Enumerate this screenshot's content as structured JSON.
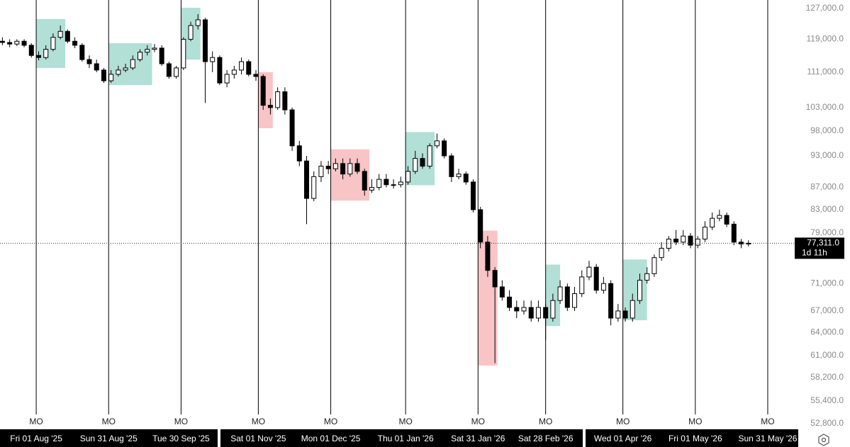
{
  "chart_data": {
    "type": "candlestick",
    "log_scale": true,
    "up_color": "#ffffff",
    "down_color": "#000000",
    "x": [
      "2025-07-18",
      "2025-07-21",
      "2025-07-24",
      "2025-07-27",
      "2025-07-30",
      "2025-08-02",
      "2025-08-05",
      "2025-08-08",
      "2025-08-11",
      "2025-08-14",
      "2025-08-17",
      "2025-08-20",
      "2025-08-23",
      "2025-08-26",
      "2025-08-29",
      "2025-09-01",
      "2025-09-04",
      "2025-09-07",
      "2025-09-10",
      "2025-09-13",
      "2025-09-16",
      "2025-09-19",
      "2025-09-22",
      "2025-09-25",
      "2025-09-28",
      "2025-10-01",
      "2025-10-04",
      "2025-10-07",
      "2025-10-10",
      "2025-10-13",
      "2025-10-16",
      "2025-10-19",
      "2025-10-22",
      "2025-10-25",
      "2025-10-28",
      "2025-10-31",
      "2025-11-03",
      "2025-11-06",
      "2025-11-09",
      "2025-11-12",
      "2025-11-15",
      "2025-11-18",
      "2025-11-21",
      "2025-11-24",
      "2025-11-27",
      "2025-11-30",
      "2025-12-03",
      "2025-12-06",
      "2025-12-09",
      "2025-12-12",
      "2025-12-15",
      "2025-12-18",
      "2025-12-21",
      "2025-12-24",
      "2025-12-27",
      "2025-12-30",
      "2026-01-02",
      "2026-01-05",
      "2026-01-08",
      "2026-01-11",
      "2026-01-14",
      "2026-01-17",
      "2026-01-20",
      "2026-01-23",
      "2026-01-26",
      "2026-01-29",
      "2026-02-01",
      "2026-02-04",
      "2026-02-07",
      "2026-02-10",
      "2026-02-13",
      "2026-02-16",
      "2026-02-19",
      "2026-02-22",
      "2026-02-25",
      "2026-02-28",
      "2026-03-03",
      "2026-03-06",
      "2026-03-09",
      "2026-03-12",
      "2026-03-15",
      "2026-03-18",
      "2026-03-21",
      "2026-03-24",
      "2026-03-27",
      "2026-03-30",
      "2026-04-02",
      "2026-04-05",
      "2026-04-08",
      "2026-04-11",
      "2026-04-14",
      "2026-04-17",
      "2026-04-20",
      "2026-04-23",
      "2026-04-26",
      "2026-04-29",
      "2026-05-02",
      "2026-05-05",
      "2026-05-08",
      "2026-05-11",
      "2026-05-14",
      "2026-05-17",
      "2026-05-20",
      "2026-05-23"
    ],
    "open": [
      118500,
      118200,
      117800,
      118500,
      117500,
      115000,
      114500,
      116500,
      119500,
      121000,
      118500,
      117500,
      114000,
      113000,
      111500,
      109000,
      110500,
      111500,
      112000,
      114000,
      115800,
      116500,
      116800,
      113000,
      110000,
      112000,
      119000,
      122500,
      124000,
      113500,
      114500,
      108500,
      110500,
      111500,
      113500,
      110500,
      110000,
      103500,
      103000,
      106500,
      102500,
      95000,
      92000,
      85000,
      89000,
      91000,
      90500,
      91500,
      89500,
      91500,
      90000,
      86500,
      87000,
      88500,
      87500,
      87500,
      88000,
      90000,
      92500,
      91000,
      95000,
      96000,
      93000,
      89000,
      89500,
      88000,
      83000,
      77500,
      73000,
      70500,
      69000,
      67500,
      67000,
      67500,
      66000,
      67500,
      66000,
      68500,
      70500,
      67500,
      69500,
      72000,
      73500,
      70000,
      71000,
      66000,
      67000,
      66000,
      68500,
      71500,
      72500,
      75000,
      76500,
      78000,
      77500,
      78500,
      77000,
      78000,
      80000,
      81500,
      82000,
      80500,
      77500,
      77200
    ],
    "high": [
      119500,
      119000,
      119000,
      119000,
      118000,
      116000,
      117500,
      120500,
      122500,
      121500,
      119500,
      118000,
      115000,
      114000,
      112000,
      111500,
      112500,
      113000,
      115000,
      116500,
      117500,
      117800,
      117500,
      113500,
      112500,
      119500,
      123500,
      125500,
      124500,
      116000,
      115000,
      111500,
      112500,
      114500,
      114000,
      111500,
      110500,
      105000,
      107500,
      107500,
      103000,
      96000,
      93000,
      90000,
      92000,
      92000,
      92500,
      92500,
      92500,
      92500,
      90500,
      88500,
      89500,
      89500,
      88500,
      89000,
      91000,
      94000,
      93500,
      95500,
      97500,
      96500,
      93500,
      90500,
      90000,
      88500,
      83500,
      78500,
      73500,
      71500,
      70000,
      68500,
      68500,
      68500,
      68500,
      68000,
      69500,
      71500,
      71000,
      70500,
      73000,
      74500,
      74000,
      72000,
      71500,
      68000,
      67500,
      69500,
      72500,
      73500,
      75500,
      77500,
      78500,
      79500,
      79500,
      79000,
      78500,
      81000,
      82500,
      83000,
      82500,
      81000,
      78000,
      77800
    ],
    "low": [
      117500,
      117000,
      117300,
      117000,
      114500,
      113800,
      114000,
      116000,
      119000,
      118000,
      116800,
      113500,
      112000,
      111000,
      108500,
      108500,
      110000,
      111000,
      111500,
      113500,
      115000,
      115800,
      112500,
      109500,
      109500,
      111500,
      118500,
      121500,
      104000,
      111000,
      108000,
      107500,
      109500,
      110500,
      110000,
      109000,
      102500,
      101500,
      102500,
      101500,
      94000,
      91000,
      80500,
      84500,
      88000,
      89500,
      90000,
      88500,
      89000,
      89500,
      85500,
      86000,
      86500,
      87000,
      86800,
      87000,
      87500,
      89500,
      90500,
      90500,
      94500,
      92500,
      88000,
      88500,
      87500,
      82500,
      76500,
      72000,
      60000,
      68500,
      67000,
      66000,
      66500,
      65500,
      65500,
      63000,
      65500,
      68000,
      67000,
      67000,
      69000,
      71500,
      69500,
      69500,
      65000,
      65500,
      65500,
      65500,
      68000,
      71000,
      72000,
      74500,
      76000,
      77000,
      77000,
      76500,
      76500,
      77500,
      79500,
      81000,
      80000,
      77000,
      76500,
      76800
    ],
    "close": [
      118200,
      117800,
      118500,
      117500,
      115000,
      114500,
      116500,
      119500,
      121000,
      118500,
      117500,
      114000,
      113000,
      111500,
      109000,
      110500,
      111500,
      112000,
      114000,
      115800,
      116500,
      116800,
      113000,
      110000,
      112000,
      119000,
      122500,
      124000,
      113500,
      114500,
      108500,
      110500,
      111500,
      113500,
      110500,
      110000,
      103500,
      103000,
      106500,
      102500,
      95000,
      92000,
      85000,
      89000,
      91000,
      90500,
      91500,
      89500,
      91500,
      90000,
      86500,
      87000,
      88500,
      87500,
      87500,
      88000,
      90000,
      92500,
      91000,
      95000,
      96000,
      93000,
      89000,
      89500,
      88000,
      83000,
      77500,
      73000,
      70500,
      69000,
      67500,
      67000,
      67500,
      66000,
      67500,
      66000,
      68500,
      70500,
      67500,
      69500,
      72000,
      73500,
      70000,
      71000,
      66000,
      67000,
      66000,
      68500,
      71500,
      72500,
      75000,
      76500,
      78000,
      77500,
      78500,
      77000,
      78000,
      80000,
      81500,
      82000,
      80500,
      77500,
      77200,
      77311
    ],
    "xlim": [
      "2025-07-17",
      "2026-06-05"
    ],
    "ylim": [
      52250,
      129300
    ],
    "yticks": [
      {
        "value": 127000,
        "label": "127,000.0"
      },
      {
        "value": 119000,
        "label": "119,000.0"
      },
      {
        "value": 111000,
        "label": "111,000.0"
      },
      {
        "value": 103000,
        "label": "103,000.0"
      },
      {
        "value": 98000,
        "label": "98,000.0"
      },
      {
        "value": 93000,
        "label": "93,000.0"
      },
      {
        "value": 87000,
        "label": "87,000.0"
      },
      {
        "value": 83000,
        "label": "83,000.0"
      },
      {
        "value": 79000,
        "label": "79,000.0"
      },
      {
        "value": 71000,
        "label": "71,000.0"
      },
      {
        "value": 67000,
        "label": "67,000.0"
      },
      {
        "value": 64000,
        "label": "64,000.0"
      },
      {
        "value": 61000,
        "label": "61,000.0"
      },
      {
        "value": 58200,
        "label": "58,200.0"
      },
      {
        "value": 55400,
        "label": "55,400.0"
      },
      {
        "value": 52800,
        "label": "52,800.0"
      }
    ],
    "period_label": "MO",
    "xticks": [
      {
        "value": "2025-08-01",
        "label": "Fri 01 Aug '25"
      },
      {
        "value": "2025-08-31",
        "label": "Sun 31 Aug '25"
      },
      {
        "value": "2025-09-30",
        "label": "Tue 30 Sep '25"
      },
      {
        "value": "2025-11-01",
        "label": "Sat 01 Nov '25"
      },
      {
        "value": "2025-12-01",
        "label": "Mon 01 Dec '25"
      },
      {
        "value": "2026-01-01",
        "label": "Thu 01 Jan '26"
      },
      {
        "value": "2026-01-31",
        "label": "Sat 31 Jan '26"
      },
      {
        "value": "2026-02-28",
        "label": "Sat 28 Feb '26"
      },
      {
        "value": "2026-04-01",
        "label": "Wed 01 Apr '26"
      },
      {
        "value": "2026-05-01",
        "label": "Fri 01 May '26"
      },
      {
        "value": "2026-05-31",
        "label": "Sun 31 May '26"
      }
    ],
    "zones": [
      {
        "start": "2025-08-01",
        "end": "2025-08-13",
        "high": 124200,
        "low": 112000,
        "color": "#b2dfd6"
      },
      {
        "start": "2025-08-31",
        "end": "2025-09-18",
        "high": 118000,
        "low": 108000,
        "color": "#b2dfd6"
      },
      {
        "start": "2025-09-30",
        "end": "2025-10-08",
        "high": 127200,
        "low": 114000,
        "color": "#b2dfd6"
      },
      {
        "start": "2025-11-01",
        "end": "2025-11-07",
        "high": 111000,
        "low": 98600,
        "color": "#f8c4c6"
      },
      {
        "start": "2025-12-01",
        "end": "2025-12-17",
        "high": 94300,
        "low": 84600,
        "color": "#f8c4c6"
      },
      {
        "start": "2026-01-01",
        "end": "2026-01-13",
        "high": 97800,
        "low": 87400,
        "color": "#b2dfd6"
      },
      {
        "start": "2026-01-31",
        "end": "2026-02-08",
        "high": 79400,
        "low": 59700,
        "color": "#f8c4c6"
      },
      {
        "start": "2026-02-28",
        "end": "2026-03-06",
        "high": 73900,
        "low": 64900,
        "color": "#b2dfd6"
      },
      {
        "start": "2026-04-01",
        "end": "2026-04-11",
        "high": 74700,
        "low": 65700,
        "color": "#b2dfd6"
      }
    ],
    "last_price": {
      "value": 77311,
      "label": "77,311.0",
      "countdown": "1d 11h"
    }
  }
}
